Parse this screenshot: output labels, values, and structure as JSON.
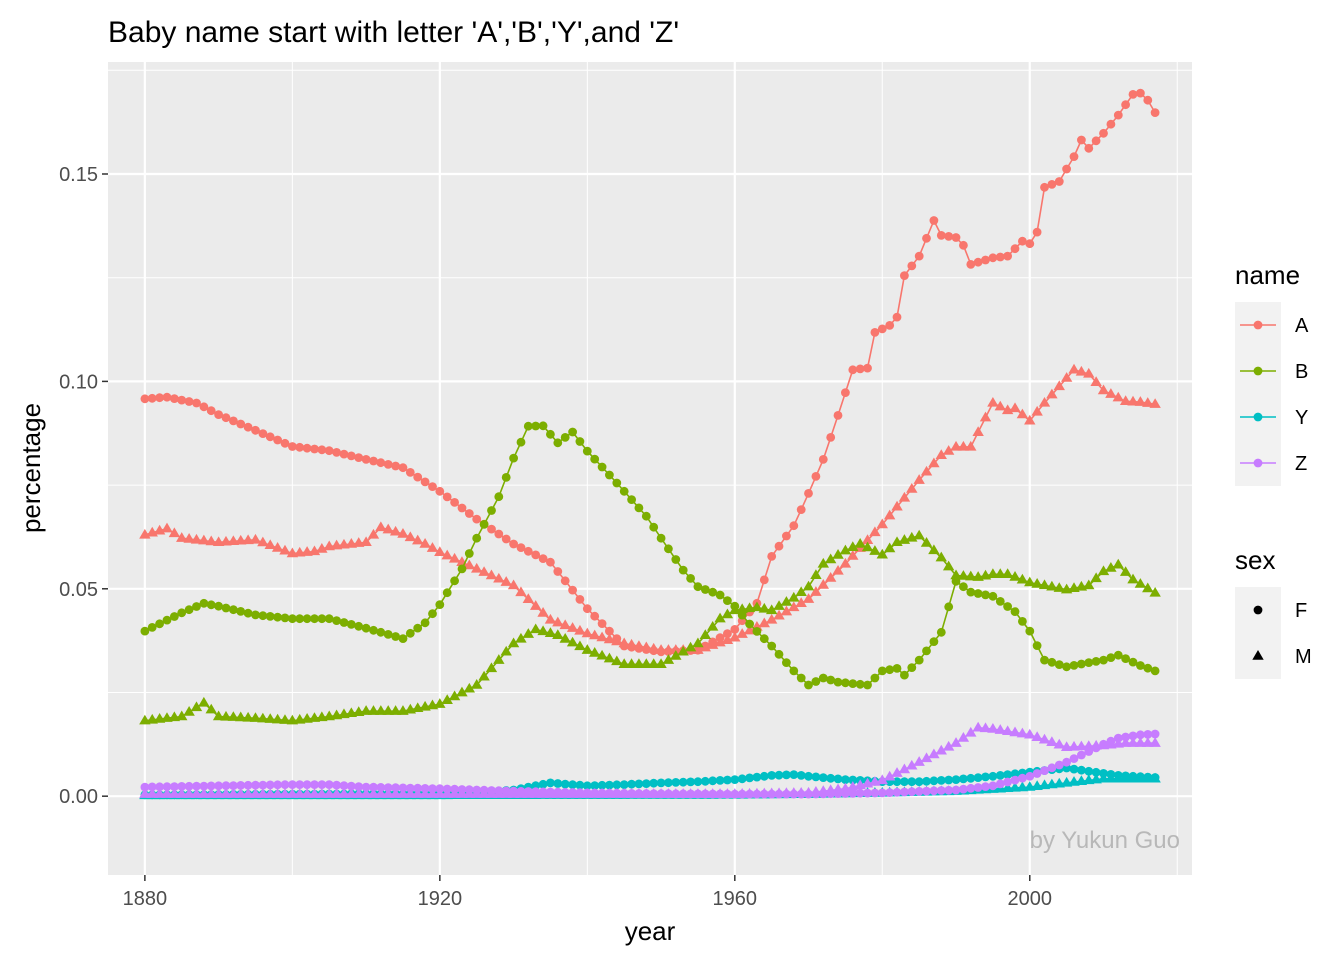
{
  "chart_data": {
    "type": "line",
    "title": "Baby name start with letter 'A','B','Y',and 'Z'",
    "xlabel": "year",
    "ylabel": "percentage",
    "caption": "by Yukun Guo",
    "xlim": [
      1875,
      2022
    ],
    "ylim": [
      -0.019,
      0.177
    ],
    "x_ticks": [
      1880,
      1920,
      1960,
      2000
    ],
    "x_tick_labels": [
      "1880",
      "1920",
      "1960",
      "2000"
    ],
    "y_ticks": [
      0,
      0.05,
      0.1,
      0.15
    ],
    "y_tick_labels": [
      "0.00",
      "0.05",
      "0.10",
      "0.15"
    ],
    "grid": true,
    "legend_position": "right",
    "legends": [
      {
        "title": "name",
        "entries": [
          {
            "label": "A",
            "color": "#F8766D"
          },
          {
            "label": "B",
            "color": "#7CAE00"
          },
          {
            "label": "Y",
            "color": "#00BFC4"
          },
          {
            "label": "Z",
            "color": "#C77CFF"
          }
        ]
      },
      {
        "title": "sex",
        "entries": [
          {
            "label": "F",
            "shape": "circle"
          },
          {
            "label": "M",
            "shape": "triangle"
          }
        ]
      }
    ],
    "series": [
      {
        "name": "A",
        "sex": "F",
        "color": "#F8766D",
        "shape": "circle",
        "points": [
          [
            1880,
            0.0958
          ],
          [
            1883,
            0.0962
          ],
          [
            1885,
            0.0955
          ],
          [
            1887,
            0.0948
          ],
          [
            1890,
            0.092
          ],
          [
            1895,
            0.0882
          ],
          [
            1900,
            0.0843
          ],
          [
            1905,
            0.0833
          ],
          [
            1910,
            0.0812
          ],
          [
            1915,
            0.0792
          ],
          [
            1920,
            0.0735
          ],
          [
            1925,
            0.0668
          ],
          [
            1930,
            0.0608
          ],
          [
            1935,
            0.0564
          ],
          [
            1940,
            0.0452
          ],
          [
            1945,
            0.0362
          ],
          [
            1950,
            0.0348
          ],
          [
            1955,
            0.0352
          ],
          [
            1960,
            0.0402
          ],
          [
            1963,
            0.0465
          ],
          [
            1965,
            0.0578
          ],
          [
            1968,
            0.0652
          ],
          [
            1970,
            0.073
          ],
          [
            1972,
            0.0812
          ],
          [
            1974,
            0.0918
          ],
          [
            1976,
            0.1028
          ],
          [
            1978,
            0.1032
          ],
          [
            1979,
            0.1118
          ],
          [
            1981,
            0.1135
          ],
          [
            1982,
            0.1155
          ],
          [
            1983,
            0.1255
          ],
          [
            1985,
            0.1302
          ],
          [
            1987,
            0.1388
          ],
          [
            1988,
            0.1352
          ],
          [
            1990,
            0.1347
          ],
          [
            1991,
            0.1328
          ],
          [
            1992,
            0.1282
          ],
          [
            1995,
            0.1298
          ],
          [
            1997,
            0.1302
          ],
          [
            1999,
            0.1338
          ],
          [
            2000,
            0.1332
          ],
          [
            2001,
            0.136
          ],
          [
            2002,
            0.1468
          ],
          [
            2004,
            0.1482
          ],
          [
            2006,
            0.1542
          ],
          [
            2007,
            0.1582
          ],
          [
            2008,
            0.1562
          ],
          [
            2010,
            0.1598
          ],
          [
            2012,
            0.1642
          ],
          [
            2014,
            0.1692
          ],
          [
            2015,
            0.1695
          ],
          [
            2016,
            0.1678
          ],
          [
            2017,
            0.1648
          ]
        ]
      },
      {
        "name": "A",
        "sex": "M",
        "color": "#F8766D",
        "shape": "triangle",
        "points": [
          [
            1880,
            0.063
          ],
          [
            1883,
            0.0645
          ],
          [
            1885,
            0.0622
          ],
          [
            1890,
            0.0612
          ],
          [
            1895,
            0.0618
          ],
          [
            1900,
            0.0585
          ],
          [
            1903,
            0.059
          ],
          [
            1905,
            0.0602
          ],
          [
            1910,
            0.0612
          ],
          [
            1912,
            0.0648
          ],
          [
            1915,
            0.0632
          ],
          [
            1918,
            0.0608
          ],
          [
            1920,
            0.0588
          ],
          [
            1925,
            0.0548
          ],
          [
            1930,
            0.0508
          ],
          [
            1935,
            0.0425
          ],
          [
            1940,
            0.0392
          ],
          [
            1945,
            0.0368
          ],
          [
            1950,
            0.0352
          ],
          [
            1955,
            0.0352
          ],
          [
            1960,
            0.0382
          ],
          [
            1965,
            0.0425
          ],
          [
            1970,
            0.0475
          ],
          [
            1975,
            0.056
          ],
          [
            1980,
            0.0655
          ],
          [
            1985,
            0.0762
          ],
          [
            1988,
            0.0822
          ],
          [
            1990,
            0.0842
          ],
          [
            1992,
            0.0842
          ],
          [
            1995,
            0.0948
          ],
          [
            1997,
            0.093
          ],
          [
            1998,
            0.0935
          ],
          [
            2000,
            0.0905
          ],
          [
            2002,
            0.0948
          ],
          [
            2004,
            0.0988
          ],
          [
            2006,
            0.1028
          ],
          [
            2008,
            0.1018
          ],
          [
            2010,
            0.0978
          ],
          [
            2013,
            0.0952
          ],
          [
            2015,
            0.095
          ],
          [
            2017,
            0.0945
          ]
        ]
      },
      {
        "name": "B",
        "sex": "F",
        "color": "#7CAE00",
        "shape": "circle",
        "points": [
          [
            1880,
            0.0398
          ],
          [
            1885,
            0.0442
          ],
          [
            1888,
            0.0465
          ],
          [
            1890,
            0.0458
          ],
          [
            1895,
            0.0437
          ],
          [
            1900,
            0.0428
          ],
          [
            1905,
            0.0428
          ],
          [
            1910,
            0.0405
          ],
          [
            1915,
            0.038
          ],
          [
            1918,
            0.0418
          ],
          [
            1920,
            0.0462
          ],
          [
            1923,
            0.0548
          ],
          [
            1925,
            0.0622
          ],
          [
            1928,
            0.0722
          ],
          [
            1930,
            0.0815
          ],
          [
            1932,
            0.0892
          ],
          [
            1934,
            0.0893
          ],
          [
            1936,
            0.0852
          ],
          [
            1938,
            0.0878
          ],
          [
            1940,
            0.0832
          ],
          [
            1944,
            0.0755
          ],
          [
            1948,
            0.0675
          ],
          [
            1950,
            0.0622
          ],
          [
            1953,
            0.0545
          ],
          [
            1955,
            0.0505
          ],
          [
            1958,
            0.0485
          ],
          [
            1960,
            0.0458
          ],
          [
            1962,
            0.0415
          ],
          [
            1965,
            0.0362
          ],
          [
            1968,
            0.0302
          ],
          [
            1970,
            0.0268
          ],
          [
            1972,
            0.0285
          ],
          [
            1974,
            0.0275
          ],
          [
            1978,
            0.0268
          ],
          [
            1980,
            0.0302
          ],
          [
            1982,
            0.0308
          ],
          [
            1983,
            0.0292
          ],
          [
            1985,
            0.0328
          ],
          [
            1988,
            0.0395
          ],
          [
            1990,
            0.0518
          ],
          [
            1992,
            0.0492
          ],
          [
            1995,
            0.0482
          ],
          [
            1998,
            0.0445
          ],
          [
            2000,
            0.0398
          ],
          [
            2002,
            0.0328
          ],
          [
            2005,
            0.0312
          ],
          [
            2008,
            0.0322
          ],
          [
            2010,
            0.0328
          ],
          [
            2012,
            0.034
          ],
          [
            2015,
            0.0315
          ],
          [
            2017,
            0.0302
          ]
        ]
      },
      {
        "name": "B",
        "sex": "M",
        "color": "#7CAE00",
        "shape": "triangle",
        "points": [
          [
            1880,
            0.0182
          ],
          [
            1885,
            0.0192
          ],
          [
            1888,
            0.0225
          ],
          [
            1890,
            0.0192
          ],
          [
            1895,
            0.0188
          ],
          [
            1900,
            0.0182
          ],
          [
            1905,
            0.0192
          ],
          [
            1910,
            0.0205
          ],
          [
            1915,
            0.0205
          ],
          [
            1920,
            0.0222
          ],
          [
            1925,
            0.0268
          ],
          [
            1930,
            0.0368
          ],
          [
            1933,
            0.0402
          ],
          [
            1936,
            0.0388
          ],
          [
            1940,
            0.0352
          ],
          [
            1945,
            0.0318
          ],
          [
            1950,
            0.0318
          ],
          [
            1955,
            0.0368
          ],
          [
            1958,
            0.0428
          ],
          [
            1960,
            0.0448
          ],
          [
            1963,
            0.0455
          ],
          [
            1965,
            0.0448
          ],
          [
            1968,
            0.0478
          ],
          [
            1970,
            0.0505
          ],
          [
            1972,
            0.056
          ],
          [
            1975,
            0.0592
          ],
          [
            1977,
            0.0608
          ],
          [
            1980,
            0.0582
          ],
          [
            1982,
            0.0612
          ],
          [
            1985,
            0.0628
          ],
          [
            1988,
            0.0575
          ],
          [
            1990,
            0.0532
          ],
          [
            1993,
            0.0528
          ],
          [
            1995,
            0.0535
          ],
          [
            1997,
            0.0535
          ],
          [
            2000,
            0.0515
          ],
          [
            2005,
            0.0498
          ],
          [
            2008,
            0.0508
          ],
          [
            2010,
            0.0542
          ],
          [
            2012,
            0.0558
          ],
          [
            2014,
            0.0522
          ],
          [
            2017,
            0.049
          ]
        ]
      },
      {
        "name": "Y",
        "sex": "F",
        "color": "#00BFC4",
        "shape": "circle",
        "points": [
          [
            1880,
            0.0003
          ],
          [
            1900,
            0.0005
          ],
          [
            1920,
            0.0006
          ],
          [
            1925,
            0.0008
          ],
          [
            1930,
            0.0015
          ],
          [
            1935,
            0.0032
          ],
          [
            1940,
            0.0025
          ],
          [
            1945,
            0.0028
          ],
          [
            1950,
            0.0032
          ],
          [
            1955,
            0.0035
          ],
          [
            1960,
            0.004
          ],
          [
            1965,
            0.005
          ],
          [
            1968,
            0.0052
          ],
          [
            1970,
            0.0048
          ],
          [
            1975,
            0.004
          ],
          [
            1980,
            0.0035
          ],
          [
            1985,
            0.0035
          ],
          [
            1990,
            0.004
          ],
          [
            1995,
            0.0048
          ],
          [
            2000,
            0.0058
          ],
          [
            2005,
            0.0068
          ],
          [
            2008,
            0.006
          ],
          [
            2012,
            0.005
          ],
          [
            2017,
            0.0045
          ]
        ]
      },
      {
        "name": "Y",
        "sex": "M",
        "color": "#00BFC4",
        "shape": "triangle",
        "points": [
          [
            1880,
            0.0002
          ],
          [
            1920,
            0.0002
          ],
          [
            1960,
            0.0003
          ],
          [
            1970,
            0.0005
          ],
          [
            1980,
            0.0008
          ],
          [
            1990,
            0.0012
          ],
          [
            2000,
            0.0022
          ],
          [
            2005,
            0.0032
          ],
          [
            2010,
            0.0042
          ],
          [
            2017,
            0.0042
          ]
        ]
      },
      {
        "name": "Z",
        "sex": "F",
        "color": "#C77CFF",
        "shape": "circle",
        "points": [
          [
            1880,
            0.0022
          ],
          [
            1890,
            0.0025
          ],
          [
            1900,
            0.0028
          ],
          [
            1905,
            0.0028
          ],
          [
            1910,
            0.0022
          ],
          [
            1920,
            0.0018
          ],
          [
            1930,
            0.0012
          ],
          [
            1940,
            0.0008
          ],
          [
            1950,
            0.0006
          ],
          [
            1960,
            0.0005
          ],
          [
            1970,
            0.0005
          ],
          [
            1980,
            0.0008
          ],
          [
            1990,
            0.0015
          ],
          [
            1995,
            0.0025
          ],
          [
            2000,
            0.0048
          ],
          [
            2005,
            0.0082
          ],
          [
            2010,
            0.0125
          ],
          [
            2012,
            0.014
          ],
          [
            2015,
            0.0148
          ],
          [
            2017,
            0.015
          ]
        ]
      },
      {
        "name": "Z",
        "sex": "M",
        "color": "#C77CFF",
        "shape": "triangle",
        "points": [
          [
            1880,
            0.0005
          ],
          [
            1900,
            0.0005
          ],
          [
            1920,
            0.0005
          ],
          [
            1940,
            0.0005
          ],
          [
            1960,
            0.0005
          ],
          [
            1970,
            0.0008
          ],
          [
            1975,
            0.0018
          ],
          [
            1980,
            0.0038
          ],
          [
            1985,
            0.0082
          ],
          [
            1990,
            0.0128
          ],
          [
            1993,
            0.0165
          ],
          [
            1995,
            0.0162
          ],
          [
            2000,
            0.0148
          ],
          [
            2005,
            0.0118
          ],
          [
            2010,
            0.0122
          ],
          [
            2013,
            0.0128
          ],
          [
            2017,
            0.0128
          ]
        ]
      }
    ]
  }
}
